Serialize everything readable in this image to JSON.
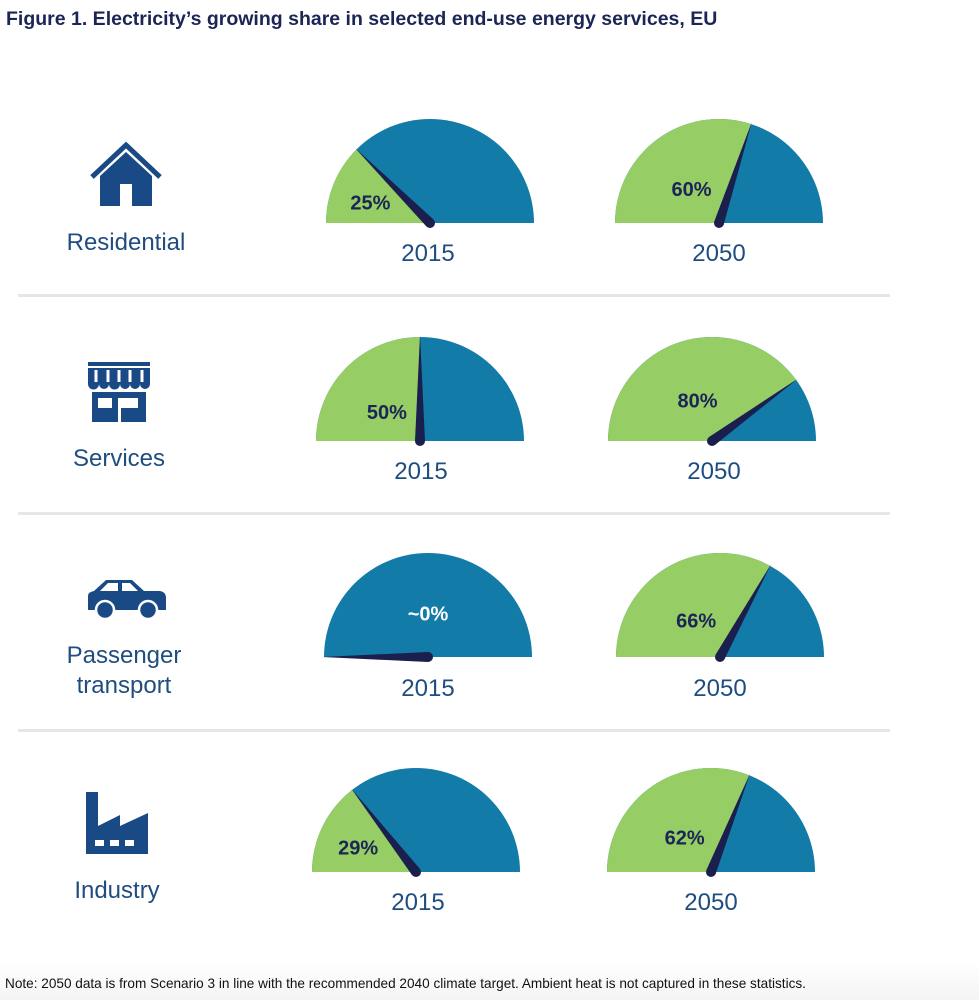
{
  "title": "Figure 1. Electricity’s growing share in selected end-use energy services, EU",
  "colors": {
    "electricity": "#96cd64",
    "other": "#127ba8",
    "needle": "#1b1f4d",
    "text": "#1f4d80"
  },
  "chart_data": {
    "type": "gauge",
    "title": "Figure 1. Electricity’s growing share in selected end-use energy services, EU",
    "unit": "% electricity share",
    "years": [
      "2015",
      "2050"
    ],
    "categories": [
      {
        "name": "Residential",
        "icon": "house-icon",
        "values": [
          25,
          60
        ],
        "labels": [
          "25%",
          "60%"
        ]
      },
      {
        "name": "Services",
        "icon": "store-icon",
        "values": [
          50,
          80
        ],
        "labels": [
          "50%",
          "80%"
        ]
      },
      {
        "name": "Passenger transport",
        "name_lines": [
          "Passenger",
          "transport"
        ],
        "icon": "car-icon",
        "values": [
          0,
          66
        ],
        "labels": [
          "~0%",
          "66%"
        ]
      },
      {
        "name": "Industry",
        "icon": "factory-icon",
        "values": [
          29,
          62
        ],
        "labels": [
          "29%",
          "62%"
        ]
      }
    ]
  },
  "note": "Note: 2050 data is from Scenario 3 in line with the recommended 2040 climate target. Ambient heat is not captured in these statistics."
}
